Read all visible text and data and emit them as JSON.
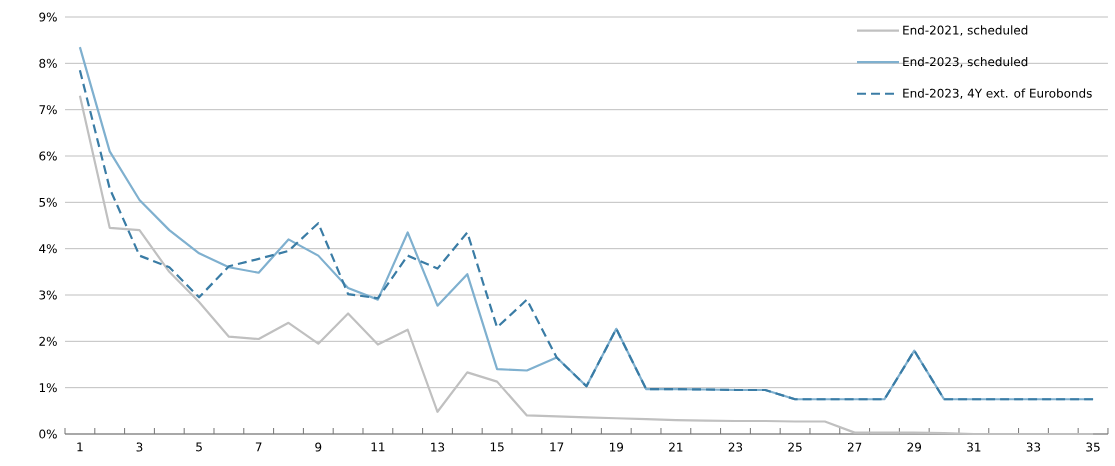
{
  "chart_data": {
    "type": "line",
    "categories": [
      "1",
      null,
      "3",
      null,
      "5",
      null,
      "7",
      null,
      "9",
      null,
      "11",
      null,
      "13",
      null,
      "15",
      null,
      "17",
      null,
      "19",
      null,
      "21",
      null,
      "23",
      null,
      "25",
      null,
      "27",
      null,
      "29",
      null,
      "31",
      null,
      "33",
      null,
      "35"
    ],
    "series": [
      {
        "name": "End-2021, scheduled",
        "color": "#c0c0c0",
        "line_style": "solid",
        "values": [
          7.3,
          4.45,
          4.4,
          3.5,
          2.85,
          2.1,
          2.05,
          2.4,
          1.95,
          2.6,
          1.93,
          2.25,
          0.48,
          1.33,
          1.13,
          0.4,
          0.38,
          0.36,
          0.34,
          0.32,
          0.3,
          0.29,
          0.28,
          0.28,
          0.27,
          0.27,
          0.03,
          0.03,
          0.03,
          0.02,
          0,
          0,
          0,
          0,
          0
        ]
      },
      {
        "name": "End-2023, scheduled",
        "color": "#7fb0cf",
        "line_style": "solid",
        "values": [
          8.35,
          6.1,
          5.05,
          4.4,
          3.9,
          3.6,
          3.48,
          4.2,
          3.85,
          3.15,
          2.9,
          4.35,
          2.77,
          3.45,
          1.4,
          1.37,
          1.65,
          1.03,
          2.27,
          0.97,
          0.97,
          0.96,
          0.95,
          0.95,
          0.75,
          0.75,
          0.75,
          0.75,
          1.8,
          0.75,
          0.75,
          0.75,
          0.75,
          0.75,
          0.75
        ]
      },
      {
        "name": "End-2023, 4Y ext. of Eurobonds",
        "color": "#3a7ca5",
        "line_style": "dashed",
        "values": [
          7.85,
          5.3,
          3.85,
          3.6,
          2.95,
          3.62,
          3.78,
          3.95,
          4.55,
          3.02,
          2.93,
          3.85,
          3.57,
          4.35,
          2.3,
          2.9,
          1.65,
          1.03,
          2.27,
          0.97,
          0.97,
          0.96,
          0.95,
          0.95,
          0.75,
          0.75,
          0.75,
          0.75,
          1.8,
          0.75,
          0.75,
          0.75,
          0.75,
          0.75,
          0.75
        ]
      }
    ],
    "ylim": [
      0,
      9
    ],
    "yticks": [
      {
        "value": 0,
        "label": "0%"
      },
      {
        "value": 1,
        "label": "1%"
      },
      {
        "value": 2,
        "label": "2%"
      },
      {
        "value": 3,
        "label": "3%"
      },
      {
        "value": 4,
        "label": "4%"
      },
      {
        "value": 5,
        "label": "5%"
      },
      {
        "value": 6,
        "label": "6%"
      },
      {
        "value": 7,
        "label": "7%"
      },
      {
        "value": 8,
        "label": "8%"
      },
      {
        "value": 9,
        "label": "9%"
      }
    ],
    "grid": "y",
    "legend": "top right",
    "marker": "none"
  }
}
